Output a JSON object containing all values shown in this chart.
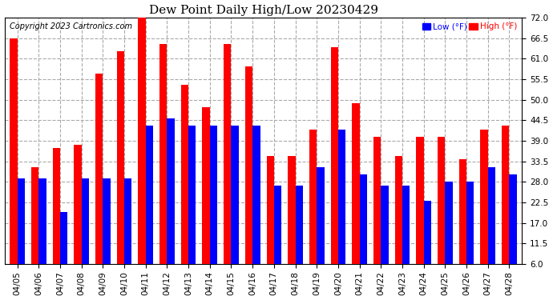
{
  "title": "Dew Point Daily High/Low 20230429",
  "copyright": "Copyright 2023 Cartronics.com",
  "dates": [
    "04/05",
    "04/06",
    "04/07",
    "04/08",
    "04/09",
    "04/10",
    "04/11",
    "04/12",
    "04/13",
    "04/14",
    "04/15",
    "04/16",
    "04/17",
    "04/18",
    "04/19",
    "04/20",
    "04/21",
    "04/22",
    "04/23",
    "04/24",
    "04/25",
    "04/26",
    "04/27",
    "04/28"
  ],
  "high_values": [
    66.5,
    32.0,
    37.0,
    38.0,
    57.0,
    63.0,
    73.0,
    65.0,
    54.0,
    48.0,
    65.0,
    59.0,
    35.0,
    35.0,
    42.0,
    64.0,
    49.0,
    40.0,
    35.0,
    40.0,
    40.0,
    34.0,
    42.0,
    43.0
  ],
  "low_values": [
    29.0,
    29.0,
    20.0,
    29.0,
    29.0,
    29.0,
    43.0,
    45.0,
    43.0,
    43.0,
    43.0,
    43.0,
    27.0,
    27.0,
    32.0,
    42.0,
    30.0,
    27.0,
    27.0,
    23.0,
    28.0,
    28.0,
    32.0,
    30.0
  ],
  "yticks": [
    6.0,
    11.5,
    17.0,
    22.5,
    28.0,
    33.5,
    39.0,
    44.5,
    50.0,
    55.5,
    61.0,
    66.5,
    72.0
  ],
  "ymin": 6.0,
  "ymax": 72.0,
  "bar_width": 0.35,
  "high_color": "#ff0000",
  "low_color": "#0000ff",
  "background_color": "#ffffff",
  "grid_color": "#aaaaaa",
  "title_fontsize": 11,
  "tick_fontsize": 7.5,
  "copyright_fontsize": 7
}
